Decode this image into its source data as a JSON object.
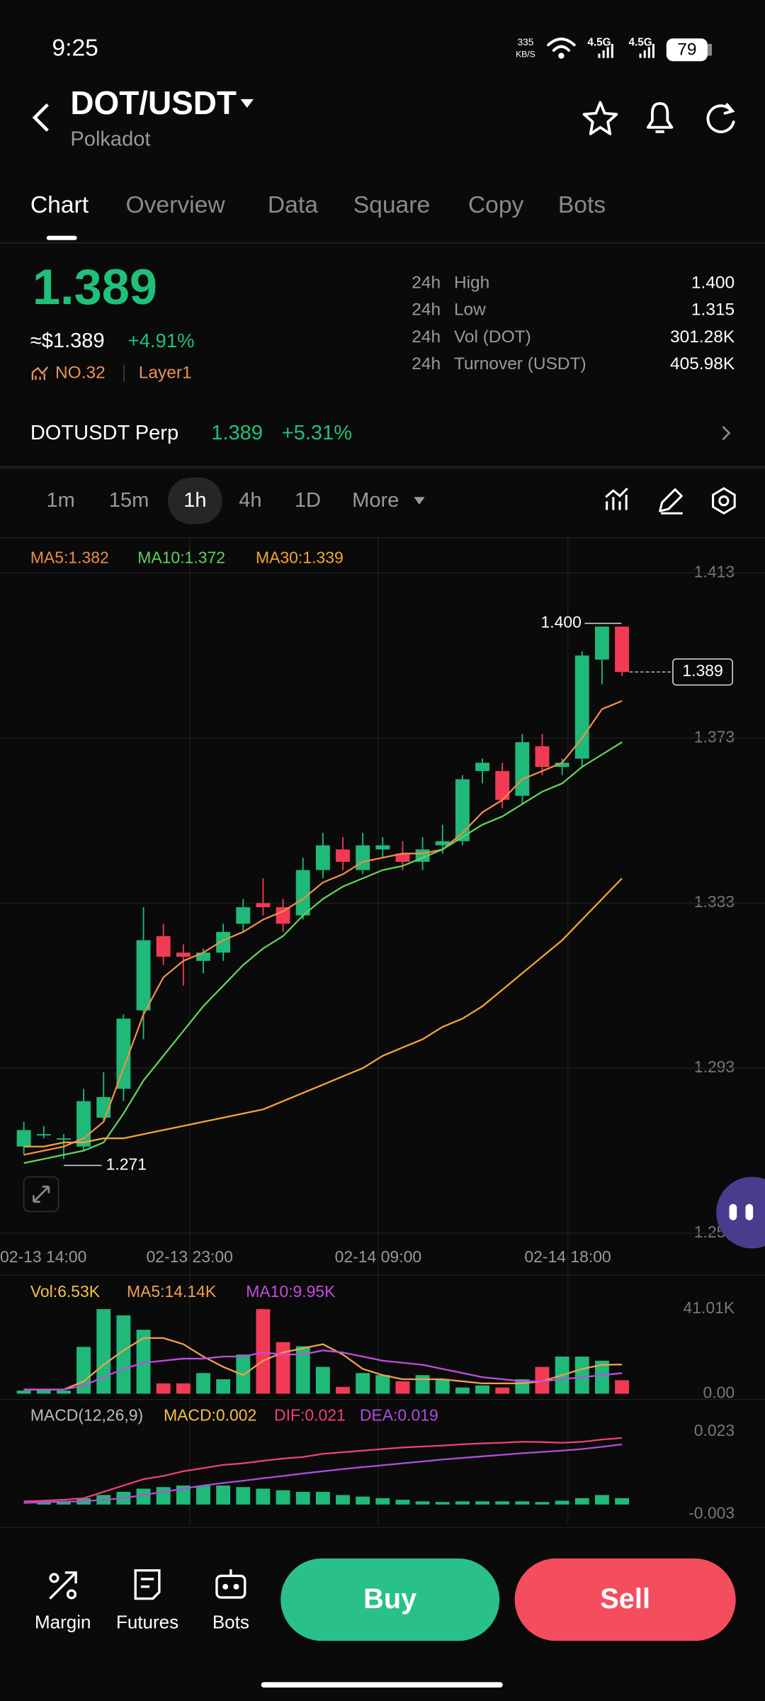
{
  "status_bar": {
    "time": "9:25",
    "net_speed": "335",
    "net_unit": "KB/S",
    "signal_1": "4.5G",
    "signal_2": "4.5G",
    "battery": "79"
  },
  "header": {
    "pair": "DOT/USDT",
    "name": "Polkadot"
  },
  "tabs": [
    "Chart",
    "Overview",
    "Data",
    "Square",
    "Copy",
    "Bots"
  ],
  "ticker": {
    "price": "1.389",
    "usd_price": "≈$1.389",
    "change": "+4.91%",
    "rank": "NO.32",
    "tag": "Layer1",
    "stats": [
      {
        "period": "24h",
        "label": "High",
        "value": "1.400"
      },
      {
        "period": "24h",
        "label": "Low",
        "value": "1.315"
      },
      {
        "period": "24h",
        "label": "Vol (DOT)",
        "value": "301.28K"
      },
      {
        "period": "24h",
        "label": "Turnover (USDT)",
        "value": "405.98K"
      }
    ]
  },
  "perp": {
    "name": "DOTUSDT Perp",
    "price": "1.389",
    "change": "+5.31%"
  },
  "intervals": [
    "1m",
    "15m",
    "1h",
    "4h",
    "1D",
    "More"
  ],
  "chart_data": [
    {
      "type": "candlestick",
      "up_color": "#1fb97a",
      "down_color": "#f23a55",
      "open": [
        1.274,
        1.277,
        1.276,
        1.274,
        1.281,
        1.288,
        1.307,
        1.325,
        1.321,
        1.319,
        1.321,
        1.328,
        1.333,
        1.332,
        1.33,
        1.341,
        1.346,
        1.341,
        1.346,
        1.345,
        1.343,
        1.347,
        1.348,
        1.365,
        1.365,
        1.359,
        1.371,
        1.366,
        1.368,
        1.392,
        1.4
      ],
      "high": [
        1.28,
        1.279,
        1.277,
        1.288,
        1.292,
        1.306,
        1.332,
        1.328,
        1.323,
        1.322,
        1.328,
        1.334,
        1.339,
        1.334,
        1.344,
        1.35,
        1.349,
        1.35,
        1.349,
        1.348,
        1.349,
        1.352,
        1.364,
        1.368,
        1.367,
        1.374,
        1.374,
        1.368,
        1.394,
        1.4,
        1.4
      ],
      "low": [
        1.272,
        1.276,
        1.271,
        1.273,
        1.28,
        1.285,
        1.3,
        1.318,
        1.313,
        1.316,
        1.319,
        1.326,
        1.33,
        1.326,
        1.329,
        1.339,
        1.341,
        1.34,
        1.344,
        1.341,
        1.341,
        1.345,
        1.347,
        1.362,
        1.356,
        1.357,
        1.364,
        1.364,
        1.366,
        1.386,
        1.388
      ],
      "close": [
        1.278,
        1.277,
        1.276,
        1.285,
        1.286,
        1.305,
        1.324,
        1.32,
        1.32,
        1.321,
        1.326,
        1.332,
        1.332,
        1.328,
        1.341,
        1.347,
        1.343,
        1.347,
        1.347,
        1.343,
        1.346,
        1.348,
        1.363,
        1.367,
        1.358,
        1.372,
        1.366,
        1.367,
        1.393,
        1.4,
        1.389
      ],
      "series": [
        {
          "name": "MA5:1.382",
          "color": "#f08c4a",
          "values": [
            1.272,
            1.273,
            1.274,
            1.276,
            1.28,
            1.293,
            1.306,
            1.315,
            1.319,
            1.321,
            1.324,
            1.326,
            1.329,
            1.331,
            1.334,
            1.338,
            1.34,
            1.343,
            1.344,
            1.345,
            1.345,
            1.346,
            1.35,
            1.355,
            1.358,
            1.363,
            1.365,
            1.367,
            1.373,
            1.38,
            1.382
          ]
        },
        {
          "name": "MA10:1.372",
          "color": "#5fd35a",
          "values": [
            1.27,
            1.271,
            1.272,
            1.273,
            1.275,
            1.282,
            1.29,
            1.296,
            1.302,
            1.308,
            1.313,
            1.318,
            1.322,
            1.325,
            1.33,
            1.334,
            1.337,
            1.339,
            1.341,
            1.342,
            1.344,
            1.346,
            1.349,
            1.352,
            1.354,
            1.357,
            1.36,
            1.362,
            1.366,
            1.369,
            1.372
          ]
        },
        {
          "name": "MA30:1.339",
          "color": "#f3a533",
          "values": [
            1.274,
            1.274,
            1.275,
            1.275,
            1.276,
            1.276,
            1.277,
            1.278,
            1.279,
            1.28,
            1.281,
            1.282,
            1.283,
            1.285,
            1.287,
            1.289,
            1.291,
            1.293,
            1.296,
            1.298,
            1.3,
            1.303,
            1.305,
            1.308,
            1.312,
            1.316,
            1.32,
            1.324,
            1.329,
            1.334,
            1.339
          ]
        }
      ],
      "ylim": [
        1.253,
        1.413
      ],
      "yticks": [
        1.413,
        1.373,
        1.333,
        1.293,
        1.253
      ],
      "grid": true,
      "high_label": {
        "value": 1.4,
        "label": "1.400"
      },
      "low_label": {
        "value": 1.271,
        "label": "1.271"
      },
      "last_label": {
        "value": 1.389,
        "label": "1.389"
      },
      "time_labels": [
        "02-13 14:00",
        "02-13 23:00",
        "02-14 09:00",
        "02-14 18:00"
      ]
    },
    {
      "type": "bar",
      "up_color": "#1fb97a",
      "down_color": "#f23a55",
      "label": "Vol:6.53K",
      "label_color": "#f5c04a",
      "values": [
        1.5,
        1.8,
        1.5,
        22.7,
        41,
        38,
        31,
        5,
        5,
        10,
        7,
        19,
        41,
        25,
        23,
        13,
        3.3,
        10,
        9,
        6,
        9,
        7,
        3,
        4,
        3,
        7,
        13,
        18,
        18,
        16,
        6.53
      ],
      "series": [
        {
          "name": "MA5:14.14K",
          "color": "#f0a050",
          "values": [
            2,
            2,
            2,
            6,
            14,
            21,
            27,
            27,
            24,
            18,
            13,
            9,
            16,
            20,
            22,
            24,
            19,
            12,
            9,
            7,
            7,
            7,
            6,
            5,
            5,
            5,
            6,
            9,
            12,
            14,
            14.14
          ]
        },
        {
          "name": "MA10:9.95K",
          "color": "#c04ee0",
          "values": [
            2,
            2,
            2,
            4,
            8,
            12,
            15,
            16,
            17,
            17,
            18,
            18,
            20,
            19,
            19,
            21,
            20,
            18,
            16,
            15,
            14,
            12,
            10,
            8,
            7,
            6,
            6,
            7,
            8,
            9,
            9.95
          ]
        }
      ],
      "ylim": [
        0,
        41.01
      ],
      "yticks": [
        {
          "value": 41.01,
          "label": "41.01K"
        },
        {
          "value": 0,
          "label": "0.00"
        }
      ],
      "grid": false
    },
    {
      "type": "bar",
      "color": "#1fb97a",
      "title": "MACD(12,26,9)",
      "label": "MACD:0.002",
      "label_color": "#f5c04a",
      "values": [
        0,
        0.0005,
        0.001,
        0.002,
        0.003,
        0.004,
        0.005,
        0.0055,
        0.006,
        0.006,
        0.006,
        0.0055,
        0.005,
        0.0045,
        0.004,
        0.004,
        0.003,
        0.0025,
        0.002,
        0.0015,
        0.001,
        0.0008,
        0.001,
        0.001,
        0.001,
        0.001,
        0.0008,
        0.0012,
        0.002,
        0.003,
        0.002
      ],
      "series": [
        {
          "name": "DIF:0.021",
          "color": "#f0407a",
          "values": [
            0.001,
            0.0012,
            0.0015,
            0.002,
            0.004,
            0.006,
            0.008,
            0.009,
            0.0105,
            0.0115,
            0.0125,
            0.013,
            0.0138,
            0.0145,
            0.015,
            0.016,
            0.0165,
            0.017,
            0.0175,
            0.018,
            0.0183,
            0.0186,
            0.019,
            0.0193,
            0.0195,
            0.0198,
            0.0197,
            0.0195,
            0.0198,
            0.0205,
            0.021
          ]
        },
        {
          "name": "DEA:0.019",
          "color": "#b04ee0",
          "values": [
            0.0005,
            0.0007,
            0.0009,
            0.001,
            0.0015,
            0.002,
            0.003,
            0.004,
            0.005,
            0.006,
            0.0068,
            0.0075,
            0.0083,
            0.009,
            0.0098,
            0.0105,
            0.0112,
            0.0118,
            0.0124,
            0.013,
            0.0136,
            0.0142,
            0.0147,
            0.0152,
            0.0157,
            0.0162,
            0.0166,
            0.017,
            0.0175,
            0.0182,
            0.019
          ]
        }
      ],
      "ylim": [
        -0.003,
        0.023
      ],
      "yticks": [
        0.023,
        -0.003
      ],
      "grid": false
    }
  ],
  "bottom_bar": {
    "actions": [
      "Margin",
      "Futures",
      "Bots"
    ],
    "buy": "Buy",
    "sell": "Sell"
  }
}
